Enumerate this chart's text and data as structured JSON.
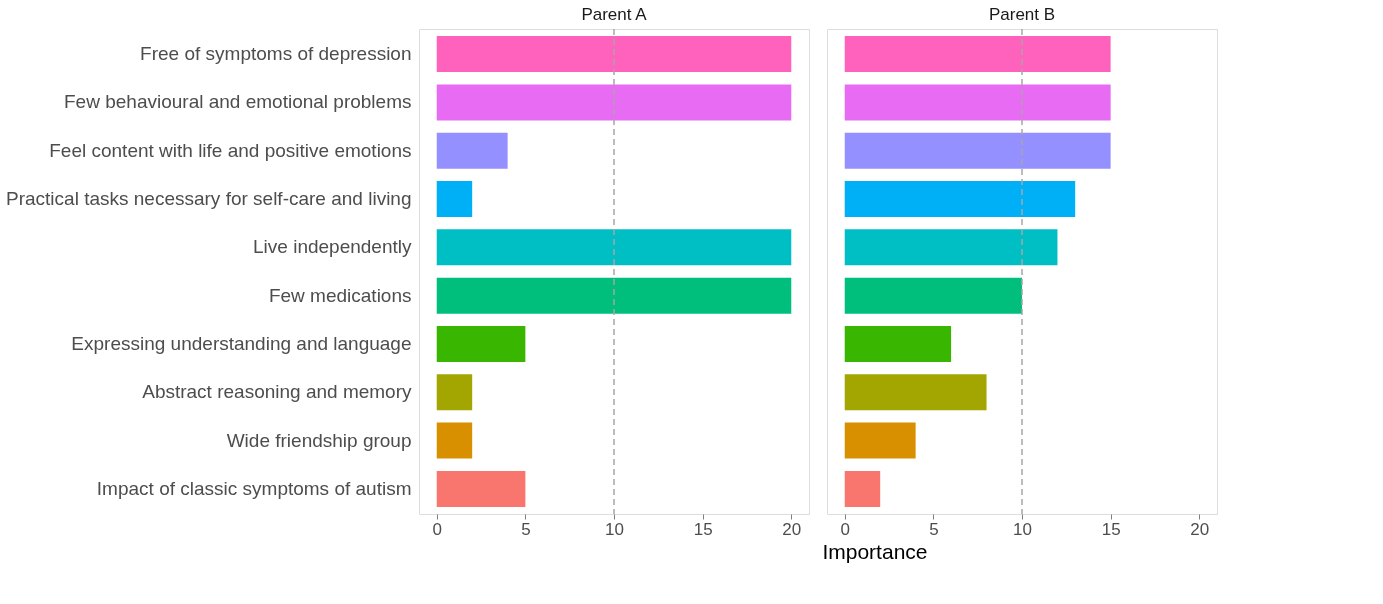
{
  "chart_data": [
    {
      "type": "bar",
      "orientation": "horizontal",
      "title": "Parent A",
      "xlabel": "Importance",
      "categories": [
        "Free of symptoms of depression",
        "Few behavioural and emotional problems",
        "Feel content with life and positive emotions",
        "Practical tasks necessary for self-care and living",
        "Live independently",
        "Few medications",
        "Expressing understanding and language",
        "Abstract reasoning and memory",
        "Wide friendship group",
        "Impact of classic symptoms of autism"
      ],
      "values": [
        20,
        20,
        4,
        2,
        20,
        20,
        5,
        2,
        2,
        5
      ],
      "colors": [
        "#ff62bc",
        "#e76bf3",
        "#9590ff",
        "#00b0f6",
        "#00bfc4",
        "#00bf7d",
        "#39b600",
        "#a3a500",
        "#d89000",
        "#f8766d"
      ],
      "xlim": [
        -1,
        21
      ],
      "xticks": [
        0,
        5,
        10,
        15,
        20
      ],
      "grid": false,
      "legend": false,
      "ref_lines": [
        {
          "axis": "x",
          "value": 10,
          "color": "#a6a6a6",
          "line_style": "dashed"
        }
      ]
    },
    {
      "type": "bar",
      "orientation": "horizontal",
      "title": "Parent B",
      "values": [
        15,
        15,
        15,
        13,
        12,
        10,
        6,
        8,
        4,
        2
      ],
      "colors": [
        "#ff62bc",
        "#e76bf3",
        "#9590ff",
        "#00b0f6",
        "#00bfc4",
        "#00bf7d",
        "#39b600",
        "#a3a500",
        "#d89000",
        "#f8766d"
      ],
      "xlim": [
        -1,
        21
      ],
      "xticks": [
        0,
        5,
        10,
        15,
        20
      ],
      "grid": false,
      "legend": false,
      "tick_labels": "x",
      "ref_lines": [
        {
          "axis": "x",
          "value": 10,
          "color": "#a6a6a6",
          "line_style": "dashed"
        }
      ]
    }
  ]
}
